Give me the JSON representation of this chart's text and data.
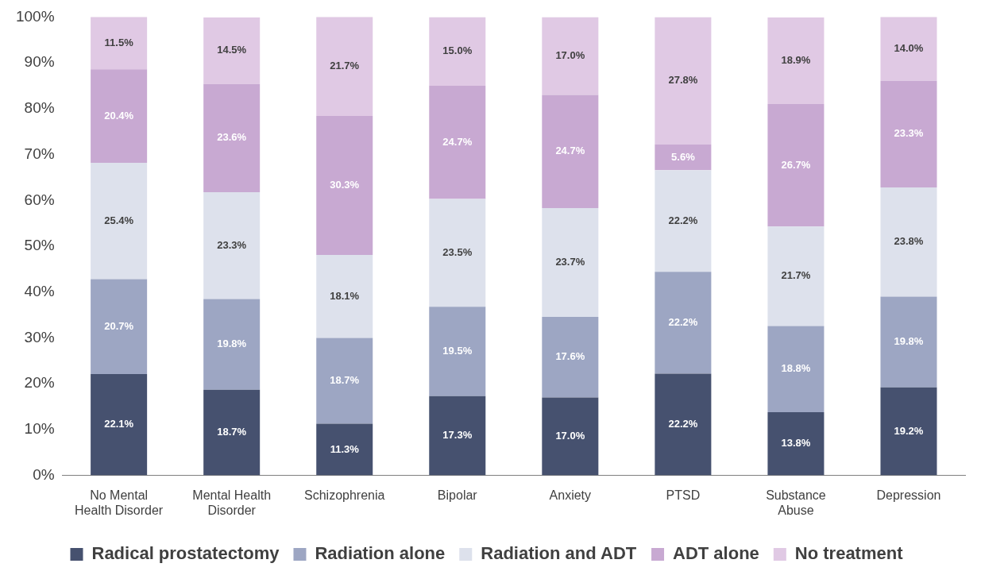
{
  "chart_data": {
    "type": "bar",
    "stacked": true,
    "categories": [
      "No Mental\nHealth Disorder",
      "Mental Health\nDisorder",
      "Schizophrenia",
      "Bipolar",
      "Anxiety",
      "PTSD",
      "Substance\nAbuse",
      "Depression"
    ],
    "series": [
      {
        "name": "Radical prostatectomy",
        "color": "#46516f",
        "values": [
          22.1,
          18.7,
          11.3,
          17.3,
          17.0,
          22.2,
          13.8,
          19.2
        ],
        "value_labels": [
          "22.1%",
          "18.7%",
          "11.3%",
          "17.3%",
          "17.0%",
          "22.2%",
          "13.8%",
          "19.2%"
        ]
      },
      {
        "name": "Radiation alone",
        "color": "#9da6c3",
        "values": [
          20.7,
          19.8,
          18.7,
          19.5,
          17.6,
          22.2,
          18.8,
          19.8
        ],
        "value_labels": [
          "20.7%",
          "19.8%",
          "18.7%",
          "19.5%",
          "17.6%",
          "22.2%",
          "18.8%",
          "19.8%"
        ]
      },
      {
        "name": "Radiation and ADT",
        "color": "#dde1ec",
        "values": [
          25.4,
          23.3,
          18.1,
          23.5,
          23.7,
          22.2,
          21.7,
          23.8
        ],
        "value_labels": [
          "25.4%",
          "23.3%",
          "18.1%",
          "23.5%",
          "23.7%",
          "22.2%",
          "21.7%",
          "23.8%"
        ]
      },
      {
        "name": "ADT alone",
        "color": "#c8a9d2",
        "values": [
          20.4,
          23.6,
          30.3,
          24.7,
          24.7,
          5.6,
          26.7,
          23.3
        ],
        "value_labels": [
          "20.4%",
          "23.6%",
          "30.3%",
          "24.7%",
          "24.7%",
          "5.6%",
          "26.7%",
          "23.3%"
        ]
      },
      {
        "name": "No treatment",
        "color": "#e0c9e4",
        "values": [
          11.5,
          14.5,
          21.7,
          15.0,
          17.0,
          27.8,
          18.9,
          14.0
        ],
        "value_labels": [
          "11.5%",
          "14.5%",
          "21.7%",
          "15.0%",
          "17.0%",
          "27.8%",
          "18.9%",
          "14.0%"
        ]
      }
    ],
    "ylim": [
      0,
      100
    ],
    "yticks": [
      {
        "value": 0,
        "label": "0%"
      },
      {
        "value": 10,
        "label": "10%"
      },
      {
        "value": 20,
        "label": "20%"
      },
      {
        "value": 30,
        "label": "30%"
      },
      {
        "value": 40,
        "label": "40%"
      },
      {
        "value": 50,
        "label": "50%"
      },
      {
        "value": 60,
        "label": "60%"
      },
      {
        "value": 70,
        "label": "70%"
      },
      {
        "value": 80,
        "label": "80%"
      },
      {
        "value": 90,
        "label": "90%"
      },
      {
        "value": 100,
        "label": "100%"
      }
    ],
    "grid": false,
    "legend": "bottom"
  }
}
